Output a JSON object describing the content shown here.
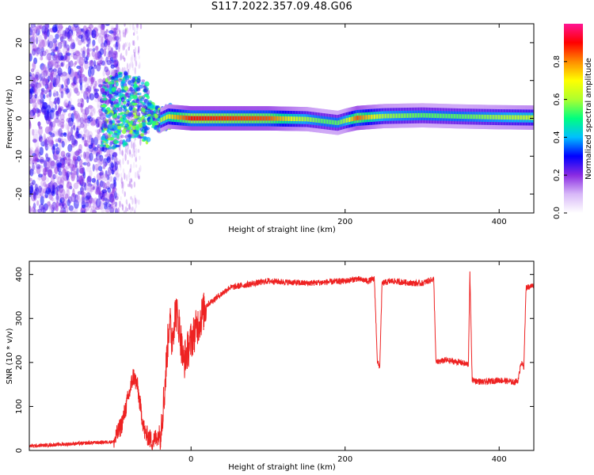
{
  "figure": {
    "title": "S117.2022.357.09.48.G06"
  },
  "chart_data": [
    {
      "type": "heatmap",
      "title": "S117.2022.357.09.48.G06",
      "xlabel": "Height of straight line (km)",
      "ylabel": "Frequency (Hz)",
      "xlim": [
        -210,
        445
      ],
      "ylim": [
        -25,
        25
      ],
      "x_ticks": [
        0,
        200,
        400
      ],
      "y_ticks": [
        -20,
        -10,
        0,
        10,
        20
      ],
      "colorbar": {
        "label": "Normalized spectral amplitude",
        "range": [
          0.0,
          1.0
        ],
        "ticks": [
          0.0,
          0.2,
          0.4,
          0.6,
          0.8
        ],
        "colormap": [
          "#ffffff",
          "#d8b8f8",
          "#8a2be2",
          "#0000ff",
          "#00bfff",
          "#00ff7f",
          "#adff2f",
          "#ffff00",
          "#ff8c00",
          "#ff0000",
          "#ff1493"
        ]
      },
      "ridge": {
        "description": "dominant frequency vs height",
        "x": [
          -110,
          -90,
          -70,
          -55,
          -40,
          -30,
          0,
          100,
          150,
          170,
          190,
          200,
          215,
          250,
          300,
          350,
          400,
          445
        ],
        "frequency": [
          1.0,
          2.5,
          3.0,
          1.5,
          -0.5,
          0.5,
          0.0,
          0.0,
          -0.2,
          -0.7,
          -1.2,
          -0.6,
          0.1,
          0.6,
          0.8,
          0.5,
          0.3,
          0.2
        ],
        "peak_amplitude": [
          0.25,
          0.35,
          0.45,
          0.55,
          0.6,
          0.7,
          0.9,
          0.85,
          0.6,
          0.55,
          0.55,
          0.6,
          0.85,
          0.6,
          0.55,
          0.55,
          0.6,
          0.65
        ]
      },
      "grid": false,
      "legend": "colorbar-right"
    },
    {
      "type": "line",
      "xlabel": "Height of straight line (km)",
      "ylabel": "SNR (10 * v/v)",
      "xlim": [
        -210,
        445
      ],
      "ylim": [
        0,
        430
      ],
      "x_ticks": [
        0,
        200,
        400
      ],
      "y_ticks": [
        0,
        100,
        200,
        300,
        400
      ],
      "color": "#ee2222",
      "series": [
        {
          "x": [
            -210,
            -100,
            -90,
            -80,
            -75,
            -70,
            -65,
            -60,
            -50,
            -40,
            -35,
            -30,
            -28,
            -25,
            -20,
            -15,
            -10,
            0,
            20,
            50,
            100,
            150,
            200,
            215,
            230,
            238,
            242,
            245,
            248,
            260,
            290,
            300,
            315,
            318,
            330,
            350,
            360,
            362,
            365,
            380,
            400,
            420,
            425,
            428,
            432,
            435,
            445
          ],
          "y": [
            10,
            20,
            60,
            130,
            170,
            150,
            90,
            40,
            20,
            40,
            120,
            250,
            300,
            250,
            320,
            280,
            200,
            250,
            330,
            370,
            385,
            380,
            385,
            390,
            385,
            390,
            200,
            190,
            380,
            385,
            380,
            380,
            390,
            200,
            205,
            200,
            195,
            400,
            160,
            155,
            160,
            155,
            160,
            200,
            190,
            370,
            375
          ]
        }
      ],
      "grid": false
    }
  ]
}
